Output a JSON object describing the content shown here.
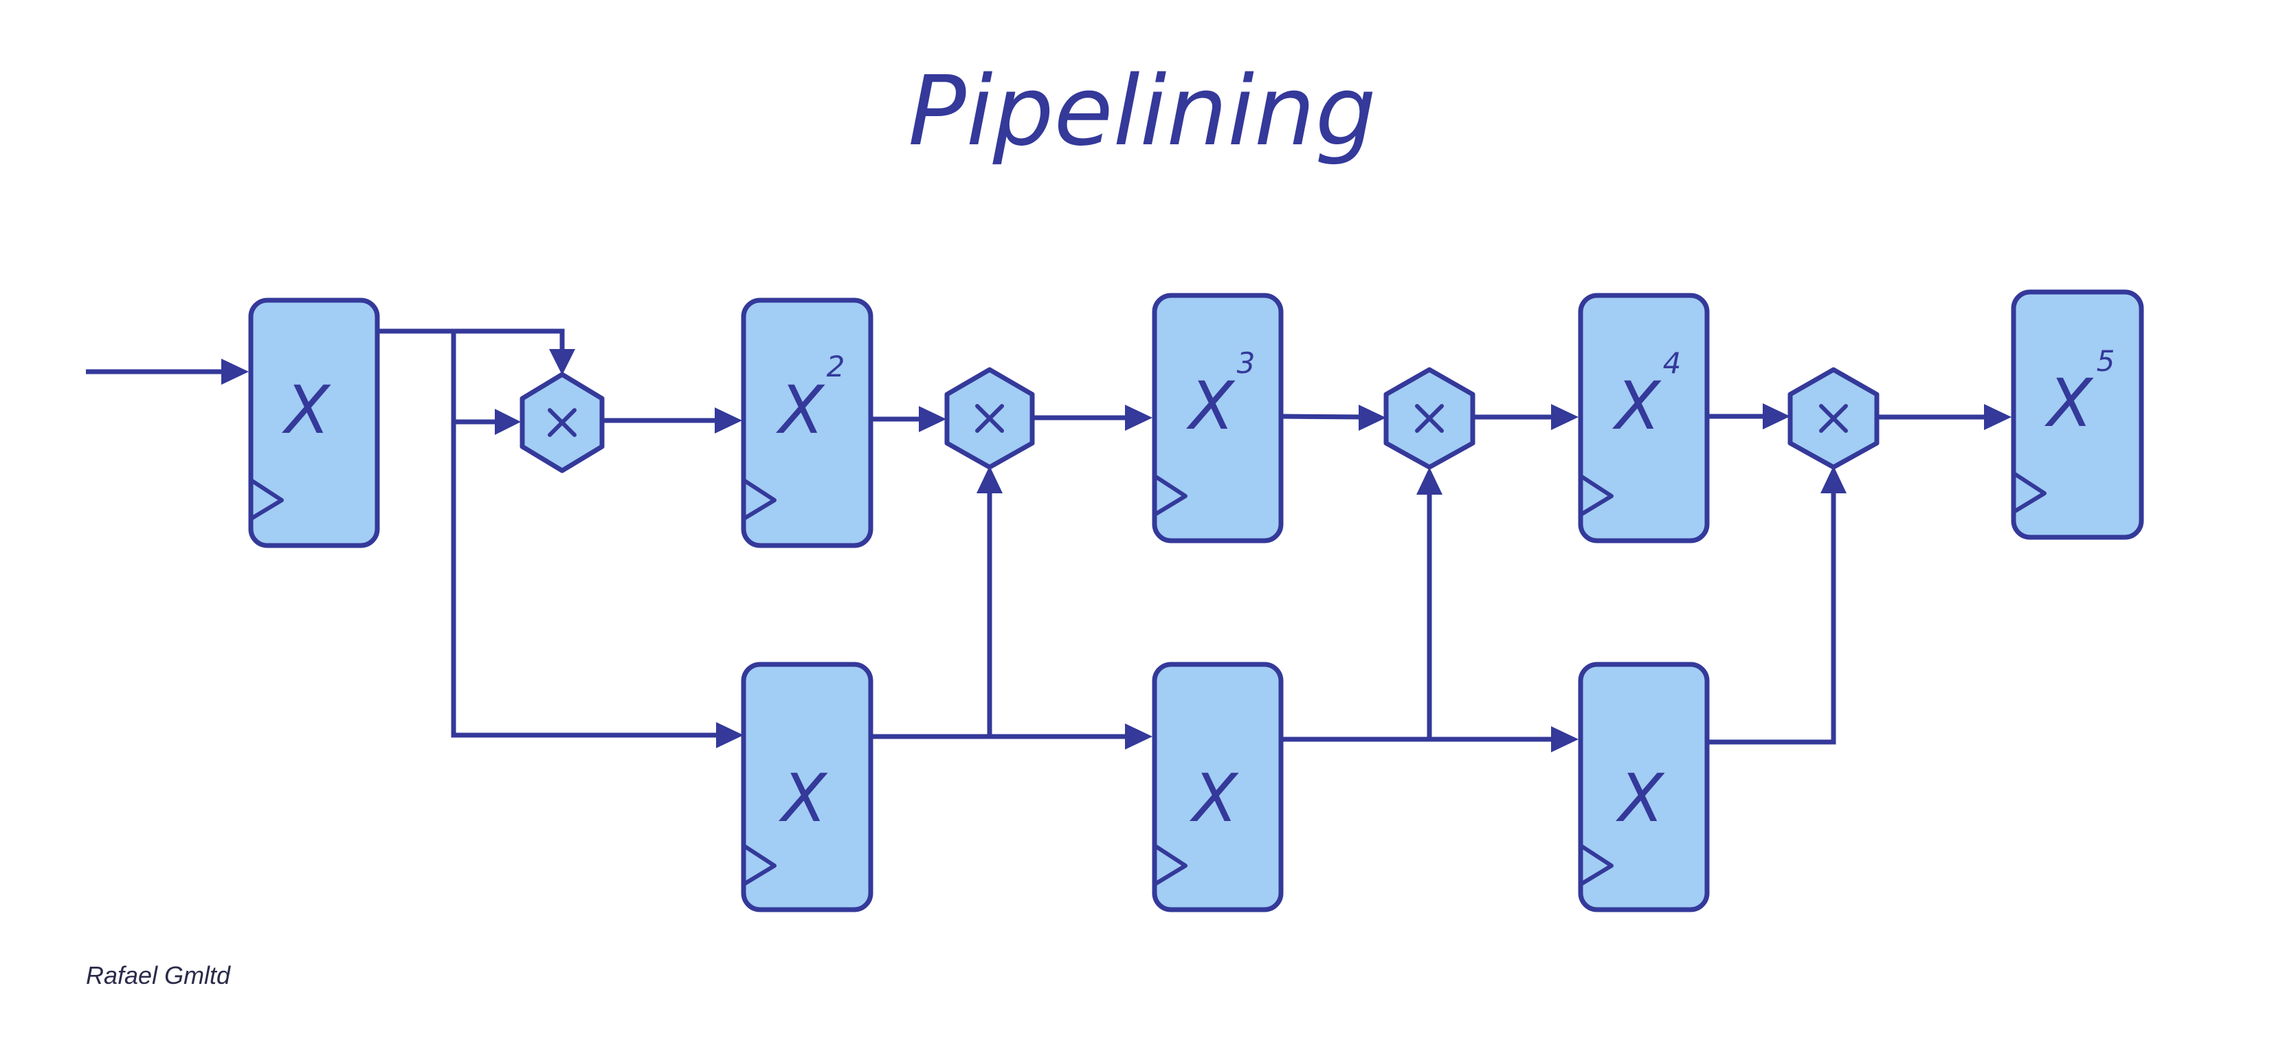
{
  "title": "Pipelining",
  "credit": "Rafael Gmltd",
  "colors": {
    "stroke": "#34399a",
    "fill": "#a2cdf4",
    "background": "#ffffff"
  },
  "registers": [
    {
      "id": "r1",
      "label": "X",
      "exponent": ""
    },
    {
      "id": "r2",
      "label": "X",
      "exponent": "2"
    },
    {
      "id": "r3",
      "label": "X",
      "exponent": "3"
    },
    {
      "id": "r4",
      "label": "X",
      "exponent": "4"
    },
    {
      "id": "r5",
      "label": "X",
      "exponent": "5"
    },
    {
      "id": "d1",
      "label": "X",
      "exponent": ""
    },
    {
      "id": "d2",
      "label": "X",
      "exponent": ""
    },
    {
      "id": "d3",
      "label": "X",
      "exponent": ""
    }
  ],
  "multipliers": [
    {
      "id": "m1",
      "icon": "multiply-icon"
    },
    {
      "id": "m2",
      "icon": "multiply-icon"
    },
    {
      "id": "m3",
      "icon": "multiply-icon"
    },
    {
      "id": "m4",
      "icon": "multiply-icon"
    }
  ],
  "connections": [
    {
      "from": "input",
      "to": "r1"
    },
    {
      "from": "r1",
      "to": "m1"
    },
    {
      "from": "r1",
      "to": "m1"
    },
    {
      "from": "r1",
      "to": "d1"
    },
    {
      "from": "m1",
      "to": "r2"
    },
    {
      "from": "r2",
      "to": "m2"
    },
    {
      "from": "d1",
      "to": "m2"
    },
    {
      "from": "d1",
      "to": "d2"
    },
    {
      "from": "m2",
      "to": "r3"
    },
    {
      "from": "r3",
      "to": "m3"
    },
    {
      "from": "d2",
      "to": "m3"
    },
    {
      "from": "d2",
      "to": "d3"
    },
    {
      "from": "m3",
      "to": "r4"
    },
    {
      "from": "r4",
      "to": "m4"
    },
    {
      "from": "d3",
      "to": "m4"
    },
    {
      "from": "m4",
      "to": "r5"
    }
  ]
}
